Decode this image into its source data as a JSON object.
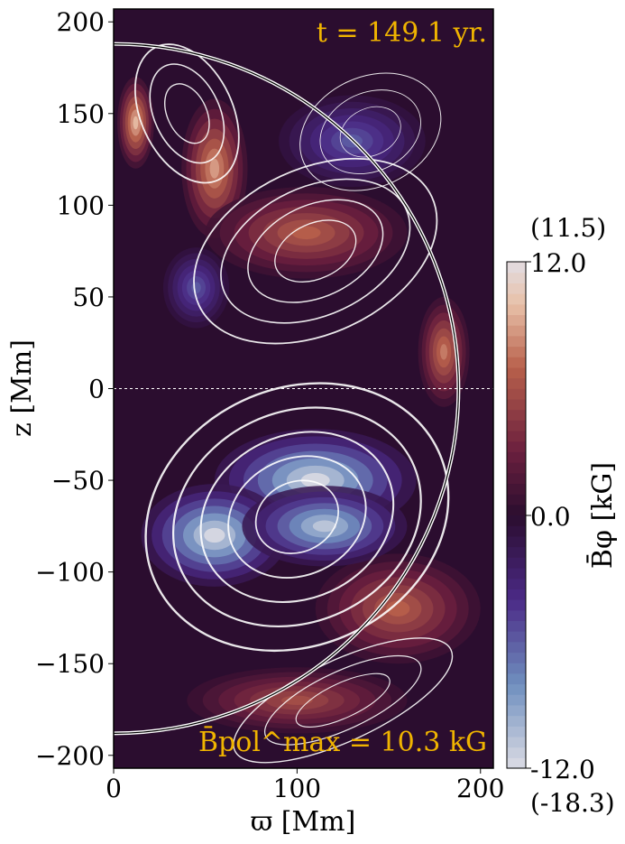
{
  "chart_data": {
    "type": "heatmap",
    "title": "",
    "xlabel": "ϖ [Mm]",
    "ylabel": "z [Mm]",
    "xlim": [
      0,
      207
    ],
    "ylim": [
      -207,
      207
    ],
    "x_ticks": [
      0,
      100,
      200
    ],
    "y_ticks": [
      200,
      150,
      100,
      50,
      0,
      -50,
      -100,
      -150,
      -200
    ],
    "x_tick_labels": [
      "0",
      "100",
      "200"
    ],
    "y_tick_labels": [
      "200",
      "150",
      "100",
      "50",
      "0",
      "−50",
      "−100",
      "−150",
      "−200"
    ],
    "field": "mean azimuthal magnetic field B̄φ",
    "overlay": "streamlines of poloidal field (white)",
    "boundary_radius_Mm": 188,
    "equator_line": true,
    "colormap": [
      "#dcdce4",
      "#6f8fbf",
      "#4b2a86",
      "#2b0d2f",
      "#6a1f3e",
      "#b8604b",
      "#e8c0a8",
      "#e2dde2"
    ],
    "color_stops_kG": [
      -12.0,
      -8.0,
      -4.0,
      0.0,
      3.0,
      7.0,
      10.0,
      12.0
    ],
    "features": [
      {
        "kind": "positive",
        "x": 55,
        "z": 120,
        "rx": 18,
        "rz": 38,
        "v": 9
      },
      {
        "kind": "positive",
        "x": 105,
        "z": 85,
        "rx": 55,
        "rz": 25,
        "v": 7
      },
      {
        "kind": "positive",
        "x": 12,
        "z": 145,
        "rx": 10,
        "rz": 25,
        "v": 10
      },
      {
        "kind": "positive",
        "x": 180,
        "z": 20,
        "rx": 14,
        "rz": 30,
        "v": 8
      },
      {
        "kind": "positive",
        "x": 155,
        "z": -120,
        "rx": 45,
        "rz": 30,
        "v": 7
      },
      {
        "kind": "positive",
        "x": 100,
        "z": -170,
        "rx": 60,
        "rz": 18,
        "v": 6
      },
      {
        "kind": "negative",
        "x": 130,
        "z": 135,
        "rx": 40,
        "rz": 25,
        "v": -6
      },
      {
        "kind": "negative",
        "x": 45,
        "z": 55,
        "rx": 18,
        "rz": 22,
        "v": -6
      },
      {
        "kind": "negative",
        "x": 110,
        "z": -50,
        "rx": 55,
        "rz": 28,
        "v": -12
      },
      {
        "kind": "negative",
        "x": 55,
        "z": -80,
        "rx": 40,
        "rz": 28,
        "v": -12
      },
      {
        "kind": "negative",
        "x": 115,
        "z": -75,
        "rx": 45,
        "rz": 22,
        "v": -11
      }
    ],
    "colorbar": {
      "label": "B̄φ [kG]",
      "max_label": "12.0",
      "mid_label": "0.0",
      "min_label": "-12.0",
      "max_actual": "(11.5)",
      "min_actual": "(-18.3)"
    },
    "annotations": {
      "time": "t = 149.1 yr.",
      "bpol_max": "B̄pol^max = 10.3 kG",
      "annotation_color": "#f0b400"
    }
  }
}
